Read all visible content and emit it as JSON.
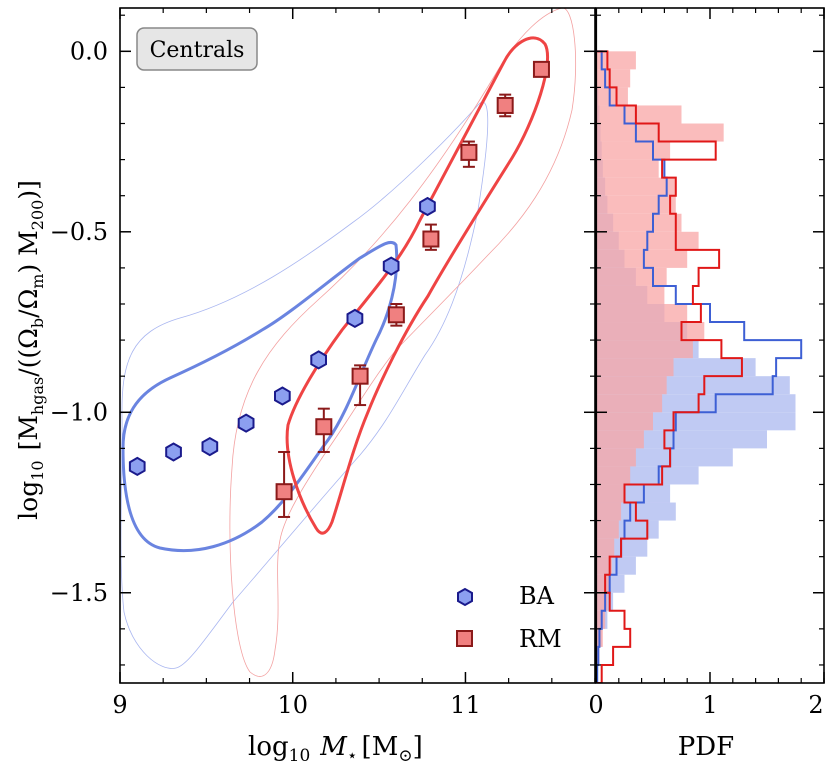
{
  "chart_data": {
    "type": "scatter",
    "main_panel": {
      "xlabel_prefix": "log",
      "xlabel_sub": "10",
      "xlabel_var": "M",
      "xlabel_var_sub": "⋆",
      "xlabel_unit": "[M",
      "xlabel_unit_sub": "⊙",
      "xlabel_unit_close": "]",
      "ylabel": "log₁₀ [M_hgas/((Ω_b/Ω_m) M_200)]",
      "ylabel_parts": {
        "prefix": "log",
        "prefix_sub": "10",
        "open": "[M",
        "mhgas_sub": "hgas",
        "mid": "/((Ω",
        "omega_b_sub": "b",
        "slash": "/Ω",
        "omega_m_sub": "m",
        "close": ") M",
        "m200_sub": "200",
        "end": ")]"
      },
      "xlim": [
        9.0,
        11.75
      ],
      "ylim": [
        -1.75,
        0.12
      ],
      "xticks": [
        9,
        10,
        11
      ],
      "xtick_labels": [
        "9",
        "10",
        "11"
      ],
      "yticks": [
        0.0,
        -0.5,
        -1.0,
        -1.5
      ],
      "ytick_labels": [
        "0.0",
        "−0.5",
        "−1.0",
        "−1.5"
      ],
      "annotation": "Centrals",
      "legend_location": "lower right",
      "series": [
        {
          "name": "BA",
          "marker": "hexagon",
          "face_color": "#8c9ff0",
          "edge_color": "#1a1a8c",
          "x": [
            9.1,
            9.31,
            9.52,
            9.73,
            9.94,
            10.15,
            10.36,
            10.57,
            10.78
          ],
          "y": [
            -1.15,
            -1.11,
            -1.095,
            -1.03,
            -0.955,
            -0.855,
            -0.74,
            -0.595,
            -0.43
          ]
        },
        {
          "name": "RM",
          "marker": "square",
          "face_color": "#f08080",
          "edge_color": "#8b1a1a",
          "x": [
            9.95,
            10.18,
            10.39,
            10.6,
            10.8,
            11.02,
            11.23,
            11.44
          ],
          "y": [
            -1.22,
            -1.04,
            -0.9,
            -0.73,
            -0.52,
            -0.28,
            -0.15,
            -0.05
          ],
          "y_err_low": [
            0.07,
            0.07,
            0.08,
            0.03,
            0.03,
            0.04,
            0.03,
            0.02
          ],
          "y_err_high": [
            0.11,
            0.05,
            0.03,
            0.03,
            0.04,
            0.03,
            0.03,
            0.02
          ]
        }
      ],
      "contours": [
        {
          "name": "BA",
          "level": "inner",
          "color": "#6a84e0"
        },
        {
          "name": "BA",
          "level": "outer",
          "color": "#a9b6f0"
        },
        {
          "name": "RM",
          "level": "inner",
          "color": "#ef4444"
        },
        {
          "name": "RM",
          "level": "outer",
          "color": "#f3a0a0"
        }
      ]
    },
    "side_panel": {
      "type": "histogram",
      "orientation": "horizontal",
      "xlabel": "PDF",
      "xlim": [
        0,
        2
      ],
      "xticks": [
        0,
        1,
        2
      ],
      "xtick_labels": [
        "0",
        "1",
        "2"
      ],
      "bin_edges": [
        -1.75,
        -1.7,
        -1.65,
        -1.6,
        -1.55,
        -1.5,
        -1.45,
        -1.4,
        -1.35,
        -1.3,
        -1.25,
        -1.2,
        -1.15,
        -1.1,
        -1.05,
        -1.0,
        -0.95,
        -0.9,
        -0.85,
        -0.8,
        -0.75,
        -0.7,
        -0.65,
        -0.6,
        -0.55,
        -0.5,
        -0.45,
        -0.4,
        -0.35,
        -0.3,
        -0.25,
        -0.2,
        -0.15,
        -0.1,
        -0.05,
        0.0
      ],
      "series": [
        {
          "name": "BA filled",
          "style": "filled",
          "color": "#b9c4f2",
          "pdf": [
            0.02,
            0.03,
            0.05,
            0.1,
            0.15,
            0.25,
            0.35,
            0.45,
            0.55,
            0.7,
            0.65,
            0.9,
            1.2,
            1.5,
            1.75,
            1.75,
            1.7,
            1.4,
            0.9,
            0.8,
            0.6,
            0.45,
            0.35,
            0.25,
            0.2,
            0.15,
            0.1,
            0.08,
            0.06,
            0.05,
            0.04,
            0.03,
            0.02,
            0.01,
            0.0
          ]
        },
        {
          "name": "RM filled",
          "style": "filled",
          "color": "#f8a5a5",
          "pdf": [
            0.01,
            0.03,
            0.06,
            0.08,
            0.1,
            0.12,
            0.14,
            0.16,
            0.2,
            0.22,
            0.25,
            0.3,
            0.35,
            0.42,
            0.5,
            0.58,
            0.62,
            0.68,
            0.85,
            0.95,
            0.8,
            0.6,
            0.62,
            0.8,
            0.9,
            0.75,
            0.7,
            0.7,
            0.55,
            0.65,
            1.12,
            0.75,
            0.28,
            0.3,
            0.35
          ]
        },
        {
          "name": "BA step",
          "style": "step",
          "color": "#3d5fd4",
          "pdf": [
            0.01,
            0.02,
            0.03,
            0.05,
            0.08,
            0.12,
            0.18,
            0.22,
            0.25,
            0.3,
            0.42,
            0.55,
            0.65,
            0.68,
            0.7,
            1.05,
            1.55,
            1.58,
            1.8,
            1.3,
            1.0,
            0.7,
            0.5,
            0.42,
            0.45,
            0.5,
            0.55,
            0.62,
            0.6,
            0.5,
            0.35,
            0.25,
            0.12,
            0.08,
            0.05
          ]
        },
        {
          "name": "RM step",
          "style": "step",
          "color": "#e01818",
          "pdf": [
            0.05,
            0.15,
            0.3,
            0.25,
            0.12,
            0.08,
            0.12,
            0.22,
            0.45,
            0.35,
            0.25,
            0.58,
            0.65,
            0.6,
            0.68,
            0.9,
            0.95,
            1.28,
            1.1,
            0.75,
            0.92,
            0.85,
            0.9,
            1.08,
            0.7,
            0.7,
            0.65,
            0.7,
            0.58,
            1.05,
            0.55,
            0.35,
            0.18,
            0.12,
            0.1
          ]
        }
      ]
    },
    "legend": [
      {
        "label": "BA",
        "marker": "hexagon"
      },
      {
        "label": "RM",
        "marker": "square"
      }
    ]
  }
}
